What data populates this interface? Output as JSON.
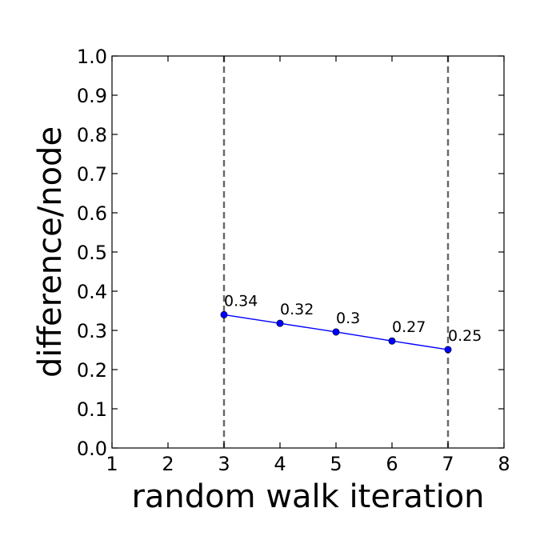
{
  "chart_data": {
    "type": "line",
    "title": "",
    "xlabel": "random walk iteration",
    "ylabel": "difference/node",
    "xlim": [
      1,
      8
    ],
    "ylim": [
      0.0,
      1.0
    ],
    "x_ticks": [
      "1",
      "2",
      "3",
      "4",
      "5",
      "6",
      "7",
      "8"
    ],
    "y_ticks": [
      "0.0",
      "0.1",
      "0.2",
      "0.3",
      "0.4",
      "0.5",
      "0.6",
      "0.7",
      "0.8",
      "0.9",
      "1.0"
    ],
    "grid": false,
    "legend": "none",
    "series": [
      {
        "x": [
          3,
          4,
          5,
          6,
          7
        ],
        "y": [
          0.34,
          0.318,
          0.296,
          0.273,
          0.251
        ],
        "point_labels": [
          "0.34",
          "0.32",
          "0.3",
          "0.27",
          "0.25"
        ],
        "color": "#0000ff"
      }
    ],
    "reference_lines": [
      {
        "orientation": "vertical",
        "x": 3,
        "style": "dashed",
        "color": "#666666"
      },
      {
        "orientation": "vertical",
        "x": 7,
        "style": "dashed",
        "color": "#666666"
      }
    ]
  }
}
